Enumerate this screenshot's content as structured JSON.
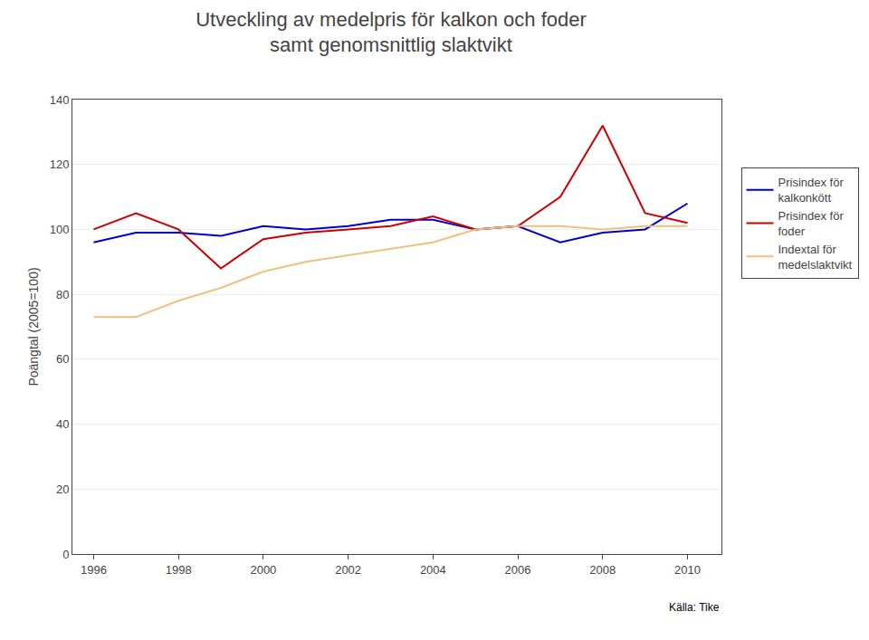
{
  "chart_data": {
    "type": "line",
    "title": "Utveckling av medelpris för kalkon och foder\nsamt genomsnittlig slaktvikt",
    "ylabel": "Poängtal (2005=100)",
    "annotations": [
      "Källa: Tike"
    ],
    "x": [
      1996,
      1997,
      1998,
      1999,
      2000,
      2001,
      2002,
      2003,
      2004,
      2005,
      2006,
      2007,
      2008,
      2009,
      2010
    ],
    "series": [
      {
        "name": "Prisindex för\nkalkonkött",
        "color": "#0000CC",
        "values": [
          96,
          99,
          99,
          98,
          101,
          100,
          101,
          103,
          103,
          100,
          101,
          96,
          99,
          100,
          108
        ]
      },
      {
        "name": "Prisindex för\nfoder",
        "color": "#CC0000",
        "values": [
          100,
          105,
          100,
          88,
          97,
          99,
          100,
          101,
          104,
          100,
          101,
          110,
          132,
          105,
          102
        ]
      },
      {
        "name": "Indextal för\nmedelslaktvikt",
        "color": "#F0C080",
        "values": [
          73,
          73,
          78,
          82,
          87,
          90,
          92,
          94,
          96,
          100,
          101,
          101,
          100,
          101,
          101
        ]
      }
    ],
    "xlim": [
      1995.5,
      2010.8
    ],
    "xticks": [
      1996,
      1998,
      2000,
      2002,
      2004,
      2006,
      2008,
      2010
    ],
    "ylim": [
      0,
      140
    ],
    "yticks": [
      0,
      20,
      40,
      60,
      80,
      100,
      120,
      140
    ],
    "grid": true,
    "legend": "right"
  }
}
